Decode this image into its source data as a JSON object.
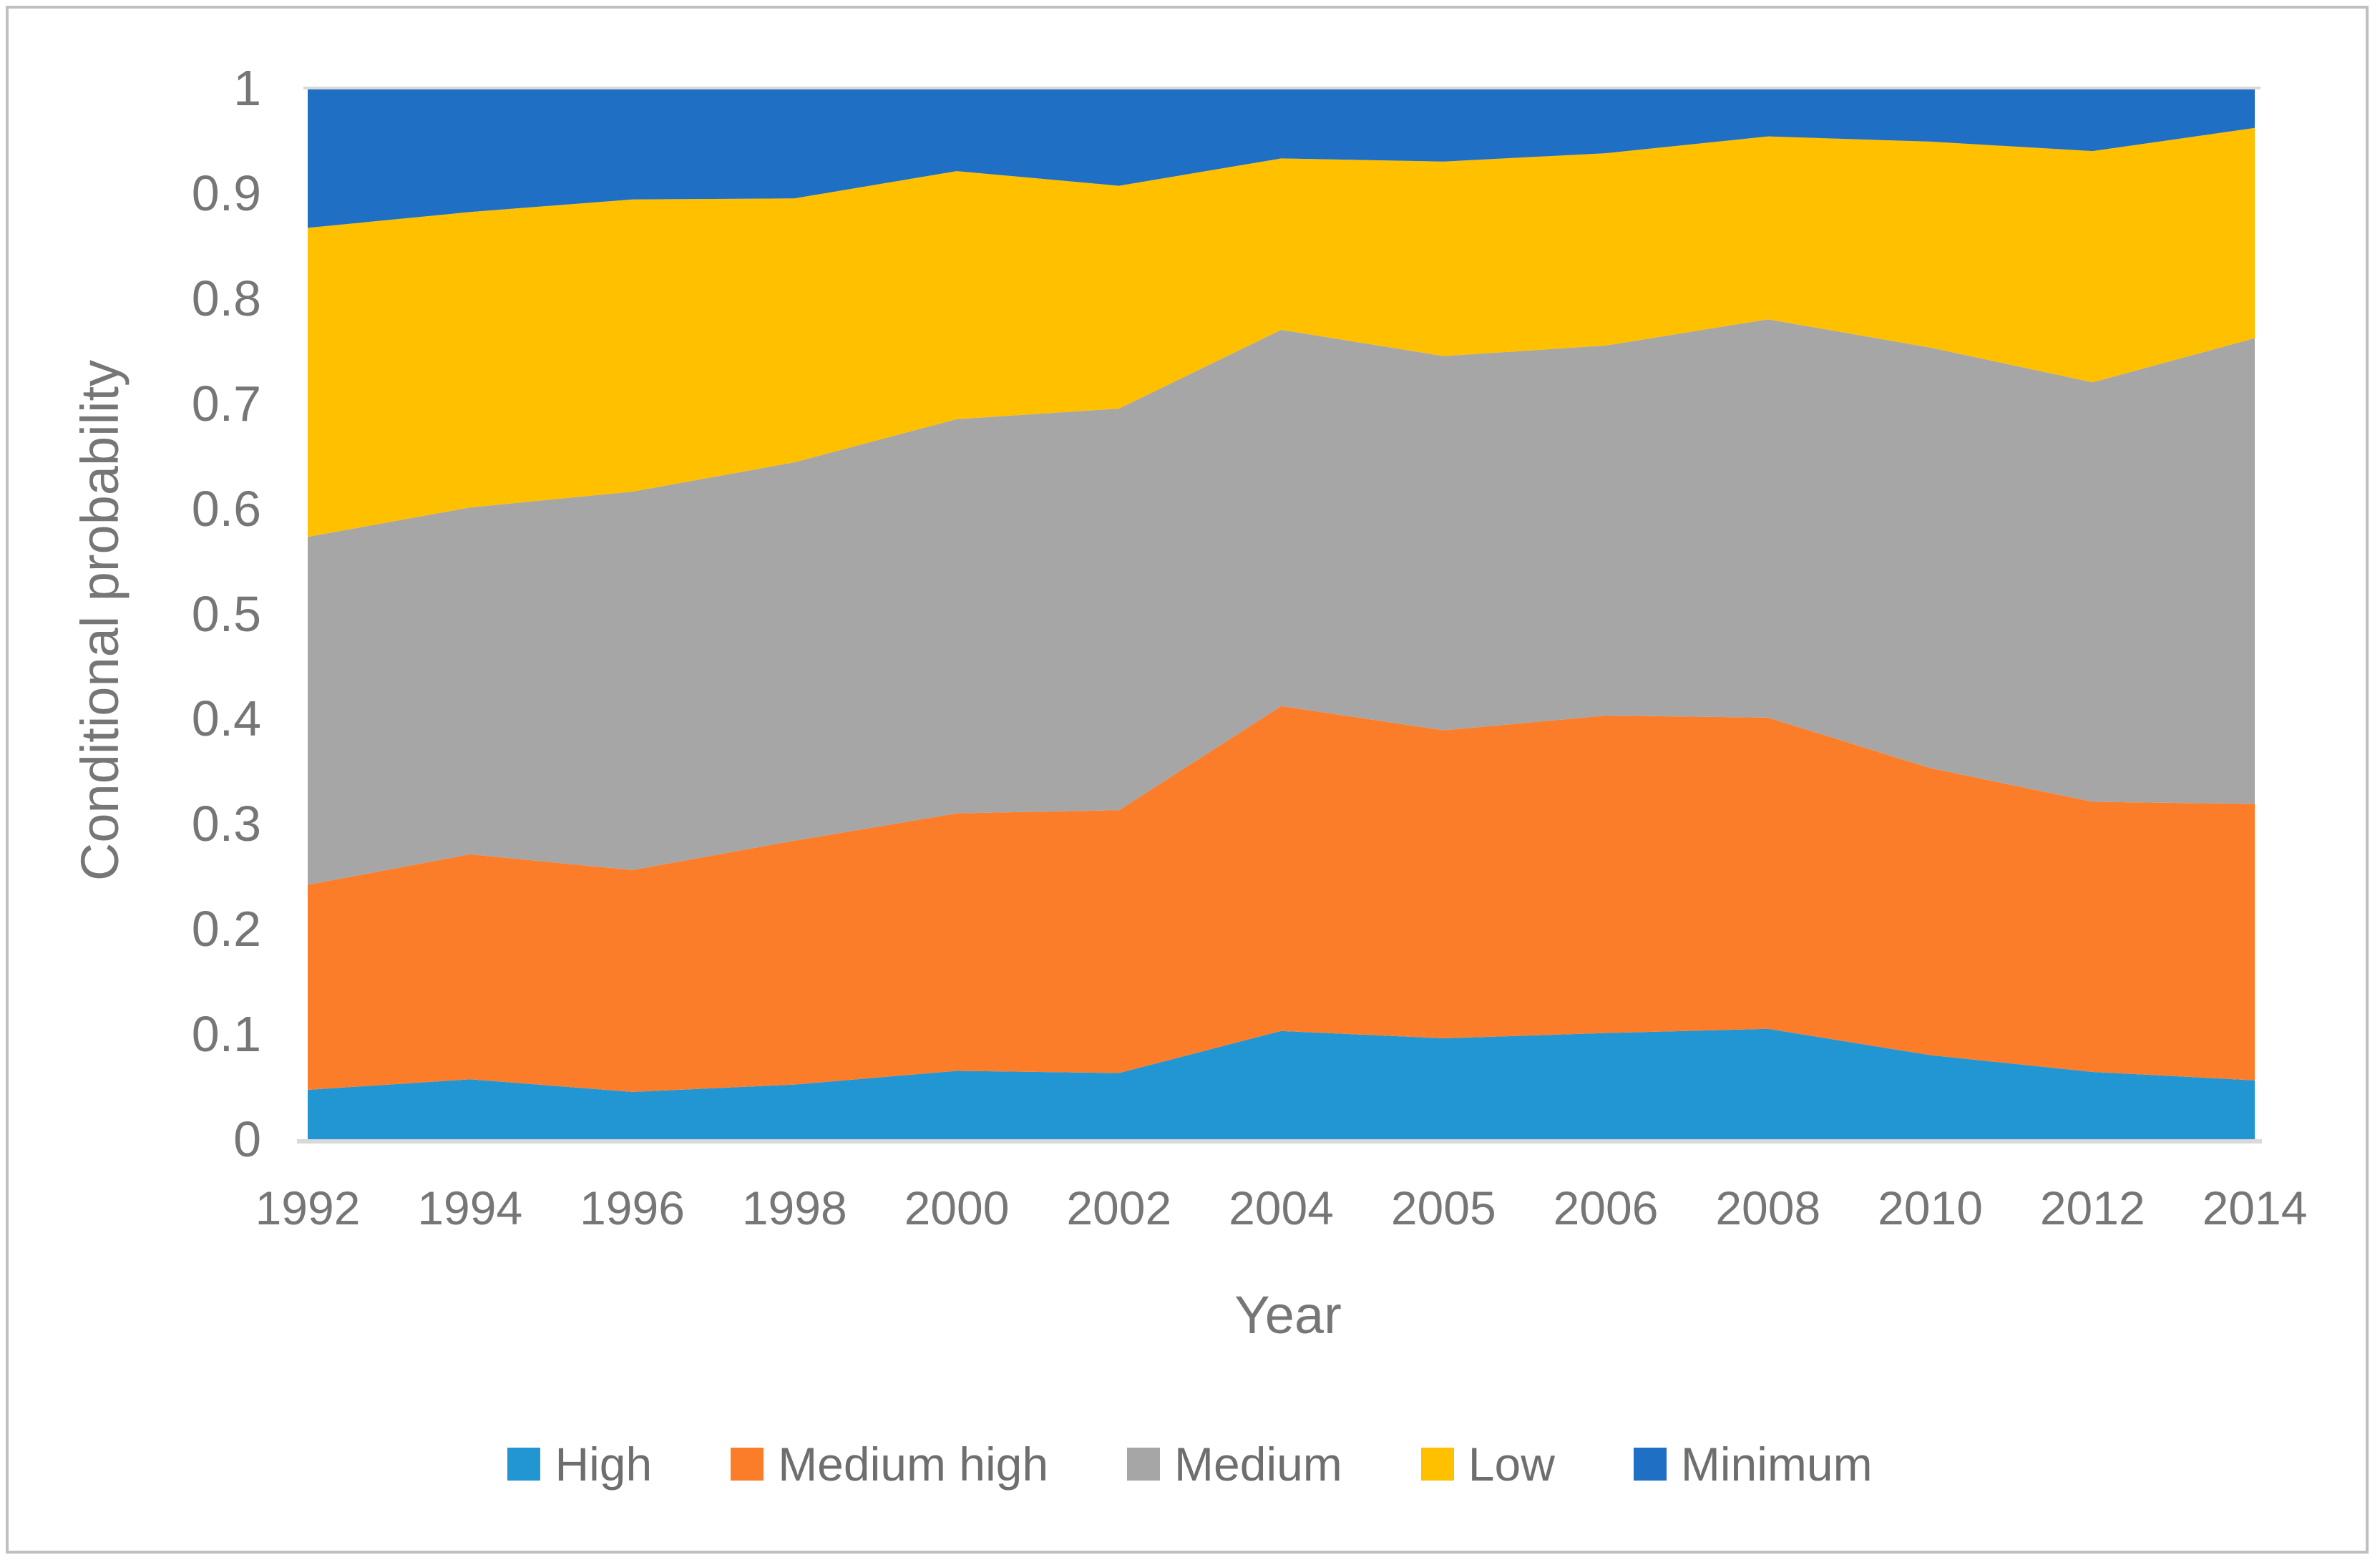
{
  "chart_data": {
    "type": "area",
    "stacked": true,
    "title": "",
    "xlabel": "Year",
    "ylabel": "Conditional probability",
    "categories": [
      "1992",
      "1994",
      "1996",
      "1998",
      "2000",
      "2002",
      "2004",
      "2005",
      "2006",
      "2008",
      "2010",
      "2012",
      "2014"
    ],
    "y_ticks": [
      "0",
      "0.1",
      "0.2",
      "0.3",
      "0.4",
      "0.5",
      "0.6",
      "0.7",
      "0.8",
      "0.9",
      "1"
    ],
    "ylim": [
      0,
      1
    ],
    "grid": "top-border-and-baseline-only",
    "legend_position": "bottom",
    "series": [
      {
        "name": "High",
        "color": "#2196D3",
        "values": [
          0.047,
          0.057,
          0.045,
          0.052,
          0.065,
          0.063,
          0.103,
          0.096,
          0.101,
          0.105,
          0.08,
          0.064,
          0.056
        ]
      },
      {
        "name": "Medium high",
        "color": "#FC7D29",
        "values": [
          0.195,
          0.214,
          0.211,
          0.232,
          0.245,
          0.25,
          0.309,
          0.293,
          0.302,
          0.296,
          0.273,
          0.257,
          0.263
        ]
      },
      {
        "name": "Medium",
        "color": "#A6A6A6",
        "values": [
          0.331,
          0.33,
          0.36,
          0.36,
          0.375,
          0.382,
          0.358,
          0.356,
          0.352,
          0.379,
          0.4,
          0.399,
          0.443
        ]
      },
      {
        "name": "Low",
        "color": "#FFC000",
        "values": [
          0.294,
          0.281,
          0.278,
          0.251,
          0.236,
          0.212,
          0.163,
          0.185,
          0.183,
          0.174,
          0.196,
          0.22,
          0.2
        ]
      },
      {
        "name": "Minimum",
        "color": "#1F6FC4",
        "values": [
          0.133,
          0.118,
          0.106,
          0.105,
          0.079,
          0.093,
          0.067,
          0.07,
          0.062,
          0.046,
          0.051,
          0.06,
          0.038
        ]
      }
    ],
    "axis_line_color": "#D9D9D9",
    "tick_text_color": "#767676"
  }
}
